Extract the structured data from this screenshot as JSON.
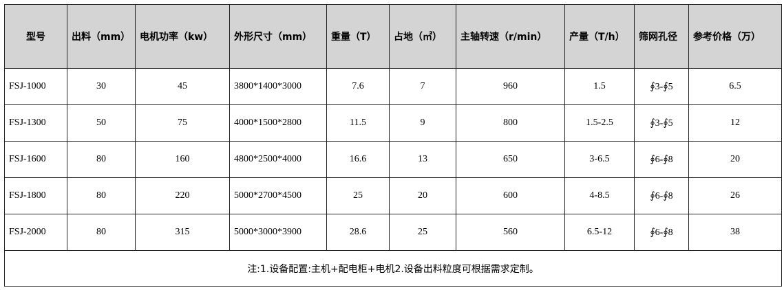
{
  "table": {
    "header": [
      "型号",
      "出料（mm）",
      "电机功率（kw）",
      "外形尺寸（mm）",
      "重量（T）",
      "占地（㎡）",
      "主轴转速（r/min）",
      "产量（T/h）",
      "筛网孔径",
      "参考价格（万）"
    ],
    "rows": [
      [
        "FSJ-1000",
        "30",
        "45",
        "3800*1400*3000",
        "7.6",
        "7",
        "960",
        "1.5",
        "∮3-∮5",
        "6.5"
      ],
      [
        "FSJ-1300",
        "50",
        "75",
        "4000*1500*2800",
        "11.5",
        "9",
        "800",
        "1.5-2.5",
        "∮3-∮5",
        "12"
      ],
      [
        "FSJ-1600",
        "80",
        "160",
        "4800*2500*4000",
        "16.6",
        "13",
        "650",
        "3-6.5",
        "∮6-∮8",
        "20"
      ],
      [
        "FSJ-1800",
        "80",
        "220",
        "5000*2700*4500",
        "25",
        "20",
        "600",
        "4-8.5",
        "∮6-∮8",
        "26"
      ],
      [
        "FSJ-2000",
        "80",
        "315",
        "5000*3000*3900",
        "28.6",
        "25",
        "560",
        "6.5-12",
        "∮6-∮8",
        "38"
      ]
    ],
    "note": "注:1.设备配置:主机+配电柜+电机2.设备出料粒度可根据需求定制。"
  }
}
